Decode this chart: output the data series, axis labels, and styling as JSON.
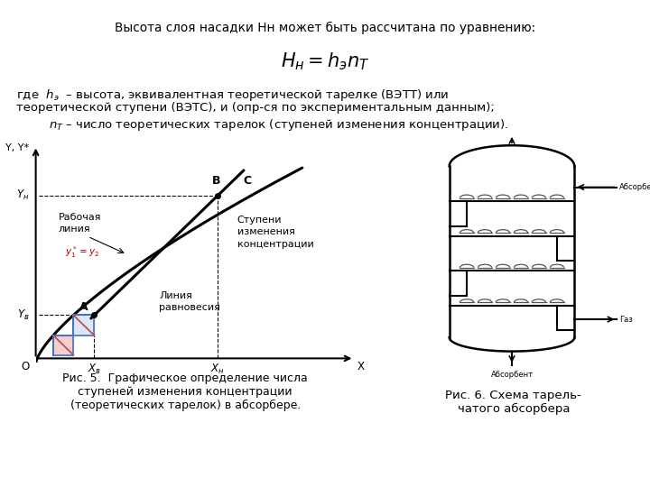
{
  "bg_color": "#ffffff",
  "title_text": "Высота слоя насадки Нн может быть рассчитана по уравнению:",
  "caption5": "Рис. 5.  Графическое определение числа\nступеней изменения концентрации\n(теоретических тарелок) в абсорбере.",
  "caption6": "Рис. 6. Схема тарель-\nчатого абсорбера",
  "text_color": "#000000",
  "line_color": "#000000",
  "blue_fill": "#d0e0f8",
  "blue_line": "#4472c4",
  "red_line": "#c0504d",
  "step_pink": "#f0c0c0"
}
